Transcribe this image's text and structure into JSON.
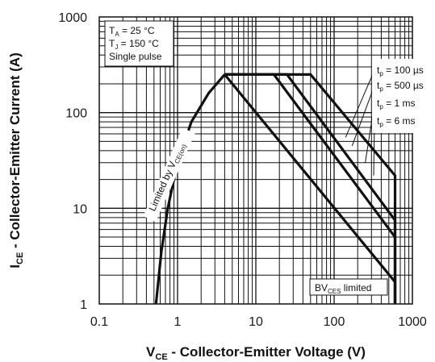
{
  "chart_data": {
    "type": "line",
    "title": "",
    "x_scale": "log",
    "y_scale": "log",
    "xlim": [
      0.1,
      1000
    ],
    "ylim": [
      1,
      1000
    ],
    "x_ticks": [
      "0.1",
      "1",
      "10",
      "100",
      "1000"
    ],
    "y_ticks": [
      "1",
      "10",
      "100",
      "1000"
    ],
    "xlabel": {
      "main": "V",
      "sub": "CE",
      "rest": " - Collector-Emitter Voltage (V)"
    },
    "ylabel": {
      "main": "I",
      "sub": "CE",
      "rest": " - Collector-Emitter Current (A)"
    },
    "grid": true,
    "conditions": {
      "ta": {
        "main": "T",
        "sub": "A",
        "rest": " = 25 °C"
      },
      "tj": {
        "main": "T",
        "sub": "J",
        "rest": " = 150 °C"
      },
      "pulse": "Single pulse"
    },
    "limit_labels": {
      "vce_on": {
        "main": "Limited by V",
        "sub": "CE(on)"
      },
      "bvces": {
        "main": "BV",
        "sub": "CES",
        "rest": " limited"
      }
    },
    "vce_on_curve": {
      "x": [
        0.53,
        0.62,
        0.75,
        1.0,
        1.5,
        2.5,
        4.0
      ],
      "y": [
        1,
        3.5,
        10,
        30,
        80,
        160,
        250
      ]
    },
    "series": [
      {
        "name": "tp = 100 µs",
        "label": {
          "main": "t",
          "sub": "p",
          "rest": " = 100 µs"
        },
        "x": [
          4.0,
          50,
          50,
          600,
          600
        ],
        "y": [
          250,
          250,
          250,
          22,
          1
        ]
      },
      {
        "name": "tp = 500 µs",
        "label": {
          "main": "t",
          "sub": "p",
          "rest": " = 500 µs"
        },
        "x": [
          4.0,
          25,
          600,
          600
        ],
        "y": [
          250,
          250,
          7.5,
          1
        ]
      },
      {
        "name": "tp = 1 ms",
        "label": {
          "main": "t",
          "sub": "p",
          "rest": " = 1 ms"
        },
        "x": [
          4.0,
          17,
          600,
          600
        ],
        "y": [
          250,
          250,
          5,
          1
        ]
      },
      {
        "name": "tp = 6 ms",
        "label": {
          "main": "t",
          "sub": "p",
          "rest": " = 6 ms"
        },
        "x": [
          4.0,
          600,
          600
        ],
        "y": [
          250,
          1.7,
          1
        ]
      }
    ]
  }
}
